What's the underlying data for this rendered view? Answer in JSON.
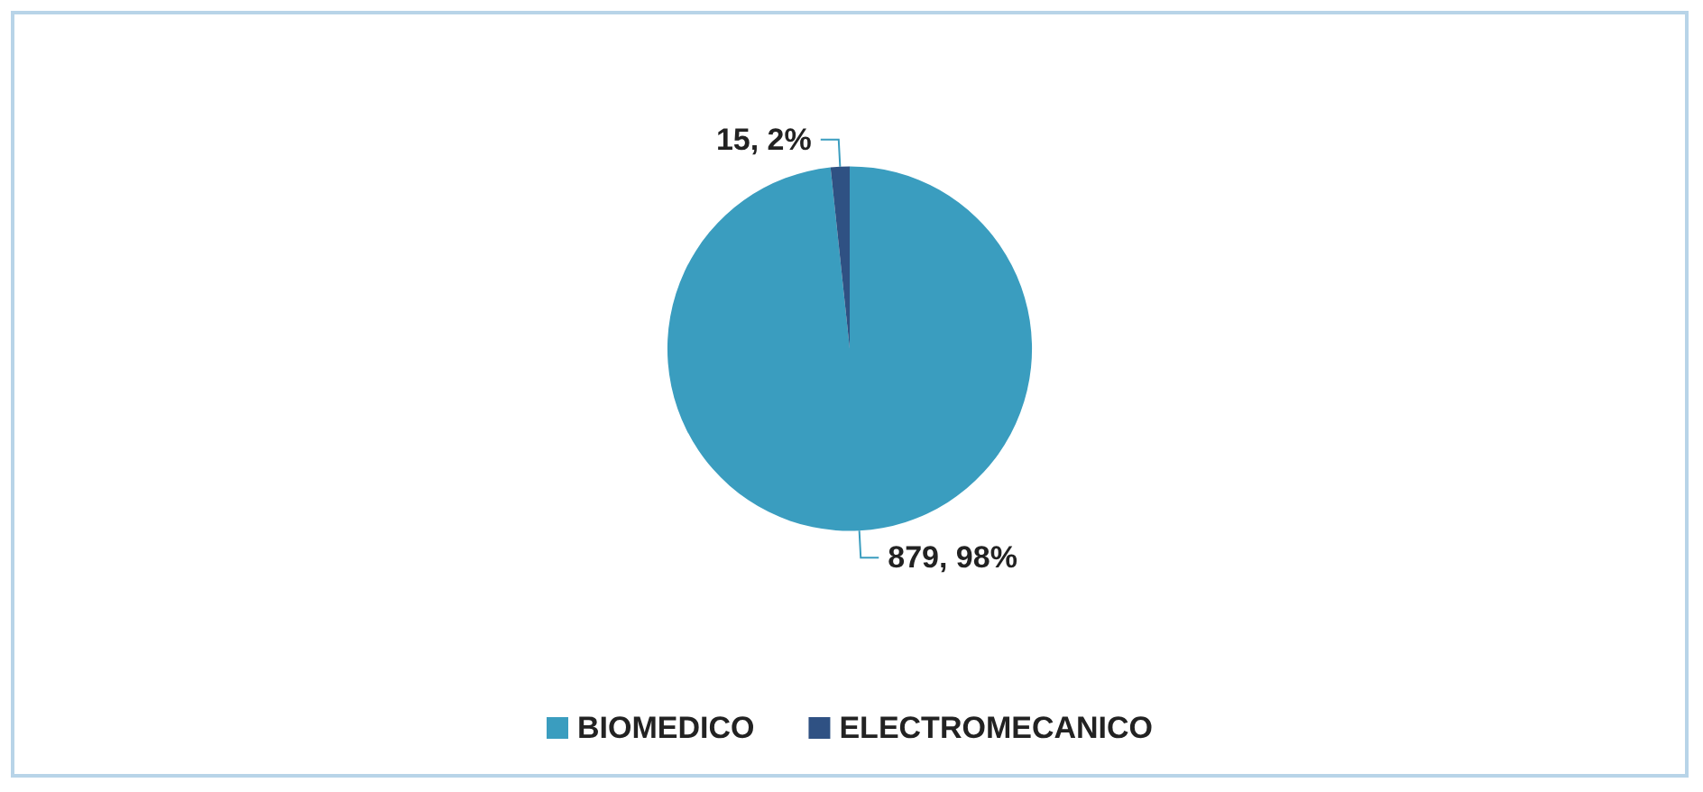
{
  "chart_data": {
    "type": "pie",
    "categories": [
      "BIOMEDICO",
      "ELECTROMECANICO"
    ],
    "values": [
      879,
      15
    ],
    "colors": [
      "#3a9dbf",
      "#2f5183"
    ],
    "value_labels": [
      "879, 98%",
      "15, 2%"
    ],
    "legend": "bottom"
  }
}
